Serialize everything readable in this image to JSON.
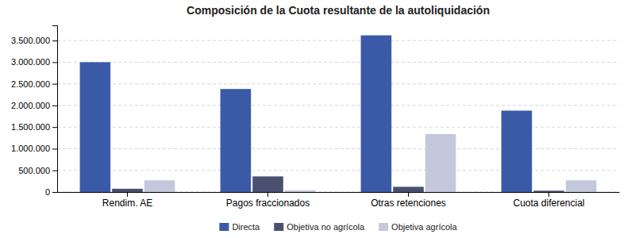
{
  "chart_data": {
    "type": "bar",
    "title": "Composición de la Cuota resultante de la autoliquidación",
    "categories": [
      "Rendim. AE",
      "Pagos fraccionados",
      "Otras retenciones",
      "Cuota diferencial"
    ],
    "series": [
      {
        "name": "Directa",
        "color": "#3a5aa8",
        "values": [
          3000000,
          2380000,
          3620000,
          1880000
        ]
      },
      {
        "name": "Objetiva no agrícola",
        "color": "#4a5070",
        "values": [
          75000,
          360000,
          120000,
          30000
        ]
      },
      {
        "name": "Objetiva agrícola",
        "color": "#c5c8dc",
        "values": [
          270000,
          40000,
          1340000,
          270000
        ]
      }
    ],
    "ylim": [
      0,
      3850000
    ],
    "yticks": [
      0,
      {
        "value": 500000,
        "label": "500.000"
      },
      {
        "value": 1000000,
        "label": "1.000.000"
      },
      {
        "value": 1500000,
        "label": "1.500.000"
      },
      {
        "value": 2000000,
        "label": "2.000.000"
      },
      {
        "value": 2500000,
        "label": "2.500.000"
      },
      {
        "value": 3000000,
        "label": "3.000.000"
      },
      {
        "value": 3500000,
        "label": "3.500.000"
      }
    ],
    "grid": true,
    "legend": "bottom"
  }
}
